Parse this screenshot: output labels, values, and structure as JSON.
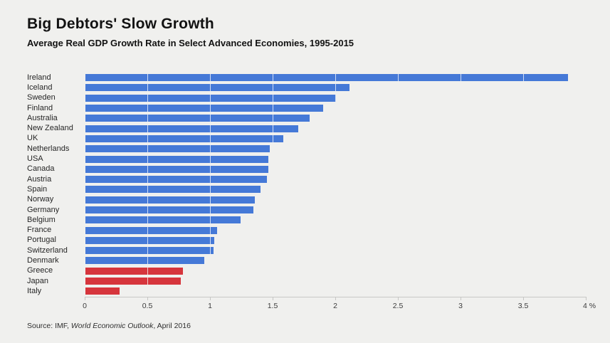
{
  "header": {
    "title": "Big Debtors' Slow Growth",
    "subtitle": "Average Real GDP Growth Rate in Select Advanced Economies, 1995-2015"
  },
  "source": {
    "prefix": "Source: IMF, ",
    "italic": "World Economic Outlook",
    "suffix": ", April 2016"
  },
  "chart_data": {
    "type": "bar",
    "orientation": "horizontal",
    "title": "Big Debtors' Slow Growth",
    "subtitle": "Average Real GDP Growth Rate in Select Advanced Economies, 1995-2015",
    "categories": [
      "Ireland",
      "Iceland",
      "Sweden",
      "Finland",
      "Australia",
      "New Zealand",
      "UK",
      "Netherlands",
      "USA",
      "Canada",
      "Austria",
      "Spain",
      "Norway",
      "Germany",
      "Belgium",
      "France",
      "Portugal",
      "Switzerland",
      "Denmark",
      "Greece",
      "Japan",
      "Italy"
    ],
    "values": [
      3.85,
      2.11,
      2.0,
      1.9,
      1.79,
      1.7,
      1.58,
      1.47,
      1.46,
      1.46,
      1.45,
      1.4,
      1.35,
      1.34,
      1.24,
      1.05,
      1.03,
      1.02,
      0.95,
      0.78,
      0.76,
      0.27
    ],
    "highlighted_categories": [
      "Greece",
      "Japan",
      "Italy"
    ],
    "bar_color": "#4579d7",
    "highlight_color": "#d6353c",
    "background_color": "#f0f0ee",
    "grid": "white vertical lines at 0.5 intervals visible over bars only",
    "legend": "none",
    "xlabel": "%",
    "ylabel": "",
    "xlim": [
      0,
      4
    ],
    "x_ticks": [
      "0",
      "0.5",
      "1",
      "1.5",
      "2",
      "2.5",
      "3",
      "3.5",
      "4 %"
    ],
    "x_tick_values": [
      0,
      0.5,
      1,
      1.5,
      2,
      2.5,
      3,
      3.5,
      4
    ]
  }
}
